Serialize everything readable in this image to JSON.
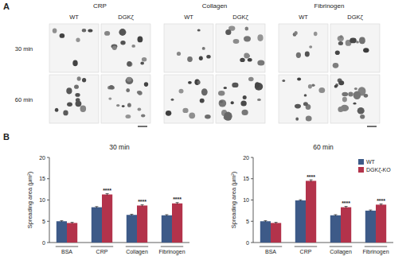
{
  "panel_a": {
    "label": "A",
    "conditions": [
      "CRP",
      "Collagen",
      "Fibrinogen"
    ],
    "genotypes": [
      "WT",
      "DGKζ"
    ],
    "times": [
      "30 min",
      "60 min"
    ]
  },
  "panel_b": {
    "label": "B"
  },
  "chart_data": [
    {
      "type": "bar",
      "title": "30 min",
      "y_label": "Spreading area (μm²)",
      "categories": [
        "BSA",
        "CRP",
        "Collagen",
        "Fibrinogen"
      ],
      "series": [
        {
          "name": "WT",
          "color": "#3d5a88",
          "values": [
            5.0,
            8.3,
            6.5,
            6.4
          ],
          "errors": [
            0.15,
            0.15,
            0.15,
            0.15
          ]
        },
        {
          "name": "DGKζ-KO",
          "color": "#b3334b",
          "values": [
            4.6,
            11.3,
            8.7,
            9.2
          ],
          "errors": [
            0.15,
            0.2,
            0.2,
            0.2
          ]
        }
      ],
      "annotations": [
        {
          "category": "CRP",
          "series": "DGKζ-KO",
          "text": "****"
        },
        {
          "category": "Collagen",
          "series": "DGKζ-KO",
          "text": "****"
        },
        {
          "category": "Fibrinogen",
          "series": "DGKζ-KO",
          "text": "****"
        }
      ],
      "ylim": [
        0,
        20
      ],
      "yticks": [
        0,
        5,
        10,
        15,
        20
      ],
      "grid": false
    },
    {
      "type": "bar",
      "title": "60 min",
      "y_label": "Spreading area (μm²)",
      "categories": [
        "BSA",
        "CRP",
        "Collagen",
        "Fibrinogen"
      ],
      "series": [
        {
          "name": "WT",
          "color": "#3d5a88",
          "values": [
            5.0,
            9.9,
            6.4,
            7.5
          ],
          "errors": [
            0.15,
            0.15,
            0.15,
            0.15
          ]
        },
        {
          "name": "DGKζ-KO",
          "color": "#b3334b",
          "values": [
            4.6,
            14.5,
            8.3,
            8.9
          ],
          "errors": [
            0.15,
            0.25,
            0.2,
            0.2
          ]
        }
      ],
      "annotations": [
        {
          "category": "CRP",
          "series": "DGKζ-KO",
          "text": "****"
        },
        {
          "category": "Collagen",
          "series": "DGKζ-KO",
          "text": "****"
        },
        {
          "category": "Fibrinogen",
          "series": "DGKζ-KO",
          "text": "****"
        }
      ],
      "ylim": [
        0,
        20
      ],
      "yticks": [
        0,
        5,
        10,
        15,
        20
      ],
      "grid": false,
      "legend": "upper right"
    }
  ]
}
